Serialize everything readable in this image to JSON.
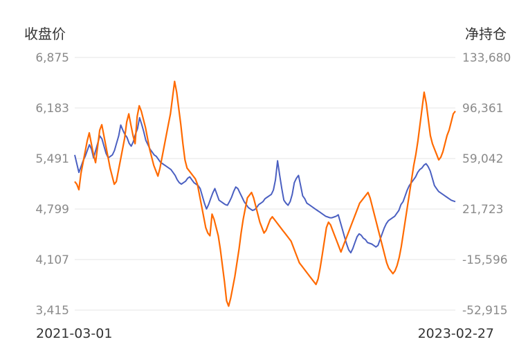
{
  "chart_data": {
    "type": "line",
    "left_axis": {
      "title": "收盘价",
      "ticks": [
        "6,875",
        "6,183",
        "5,491",
        "4,799",
        "4,107",
        "3,415"
      ],
      "range": [
        3415,
        6875
      ]
    },
    "right_axis": {
      "title": "净持仓",
      "ticks": [
        "133,680",
        "96,361",
        "59,042",
        "21,723",
        "-15,596",
        "-52,915"
      ],
      "range": [
        -52915,
        133680
      ]
    },
    "x_labels": [
      "2021-03-01",
      "2023-02-27"
    ],
    "grid": true,
    "series": [
      {
        "axis": "left",
        "color": "#4a5fc1",
        "values": [
          5540,
          5420,
          5300,
          5380,
          5460,
          5520,
          5600,
          5680,
          5620,
          5500,
          5600,
          5700,
          5800,
          5760,
          5660,
          5560,
          5500,
          5520,
          5540,
          5600,
          5700,
          5800,
          5950,
          5880,
          5820,
          5780,
          5700,
          5660,
          5720,
          5820,
          5900,
          6050,
          5960,
          5860,
          5740,
          5680,
          5620,
          5580,
          5540,
          5520,
          5480,
          5440,
          5420,
          5400,
          5380,
          5360,
          5340,
          5300,
          5260,
          5200,
          5160,
          5140,
          5160,
          5180,
          5220,
          5240,
          5200,
          5160,
          5140,
          5120,
          5080,
          4980,
          4880,
          4800,
          4860,
          4940,
          5020,
          5080,
          5000,
          4920,
          4900,
          4880,
          4860,
          4850,
          4900,
          4960,
          5040,
          5100,
          5080,
          5020,
          4960,
          4900,
          4860,
          4820,
          4800,
          4780,
          4790,
          4820,
          4860,
          4880,
          4900,
          4940,
          4960,
          4980,
          5000,
          5060,
          5200,
          5460,
          5260,
          5080,
          4920,
          4880,
          4850,
          4900,
          5000,
          5160,
          5220,
          5260,
          5120,
          4980,
          4940,
          4880,
          4860,
          4840,
          4820,
          4800,
          4780,
          4760,
          4740,
          4720,
          4700,
          4690,
          4680,
          4680,
          4690,
          4700,
          4720,
          4620,
          4520,
          4420,
          4320,
          4240,
          4200,
          4260,
          4340,
          4420,
          4460,
          4440,
          4400,
          4380,
          4340,
          4330,
          4320,
          4300,
          4280,
          4300,
          4380,
          4460,
          4540,
          4600,
          4640,
          4660,
          4680,
          4700,
          4740,
          4780,
          4860,
          4900,
          4980,
          5060,
          5120,
          5160,
          5200,
          5240,
          5300,
          5340,
          5360,
          5400,
          5420,
          5380,
          5320,
          5220,
          5120,
          5080,
          5040,
          5020,
          5000,
          4980,
          4960,
          4940,
          4920,
          4910,
          4900
        ]
      },
      {
        "axis": "right",
        "color": "#ff6a00",
        "values": [
          42000,
          40000,
          36000,
          48000,
          56000,
          64000,
          72000,
          78000,
          70000,
          62000,
          56000,
          68000,
          80000,
          84000,
          76000,
          68000,
          60000,
          52000,
          46000,
          40000,
          42000,
          50000,
          58000,
          66000,
          74000,
          86000,
          92000,
          84000,
          76000,
          70000,
          90000,
          98000,
          94000,
          88000,
          82000,
          74000,
          66000,
          60000,
          54000,
          50000,
          46000,
          52000,
          60000,
          68000,
          76000,
          84000,
          92000,
          104000,
          116000,
          108000,
          96000,
          84000,
          70000,
          58000,
          52000,
          50000,
          48000,
          46000,
          44000,
          40000,
          32000,
          24000,
          16000,
          8000,
          4000,
          2000,
          18000,
          14000,
          8000,
          2000,
          -8000,
          -20000,
          -32000,
          -46000,
          -50000,
          -44000,
          -36000,
          -28000,
          -18000,
          -8000,
          4000,
          14000,
          22000,
          30000,
          32000,
          34000,
          30000,
          24000,
          18000,
          12000,
          8000,
          4000,
          6000,
          10000,
          14000,
          16000,
          14000,
          12000,
          10000,
          8000,
          6000,
          4000,
          2000,
          0,
          -2000,
          -6000,
          -10000,
          -14000,
          -18000,
          -20000,
          -22000,
          -24000,
          -26000,
          -28000,
          -30000,
          -32000,
          -34000,
          -30000,
          -22000,
          -12000,
          -2000,
          8000,
          12000,
          10000,
          6000,
          2000,
          -2000,
          -6000,
          -10000,
          -6000,
          -2000,
          2000,
          6000,
          10000,
          14000,
          18000,
          22000,
          26000,
          28000,
          30000,
          32000,
          34000,
          30000,
          24000,
          18000,
          12000,
          6000,
          0,
          -6000,
          -12000,
          -18000,
          -22000,
          -24000,
          -26000,
          -24000,
          -20000,
          -14000,
          -6000,
          4000,
          14000,
          24000,
          34000,
          44000,
          54000,
          62000,
          72000,
          84000,
          96000,
          108000,
          100000,
          88000,
          76000,
          70000,
          66000,
          62000,
          58000,
          60000,
          64000,
          70000,
          76000,
          80000,
          86000,
          92000,
          94000
        ]
      }
    ]
  }
}
